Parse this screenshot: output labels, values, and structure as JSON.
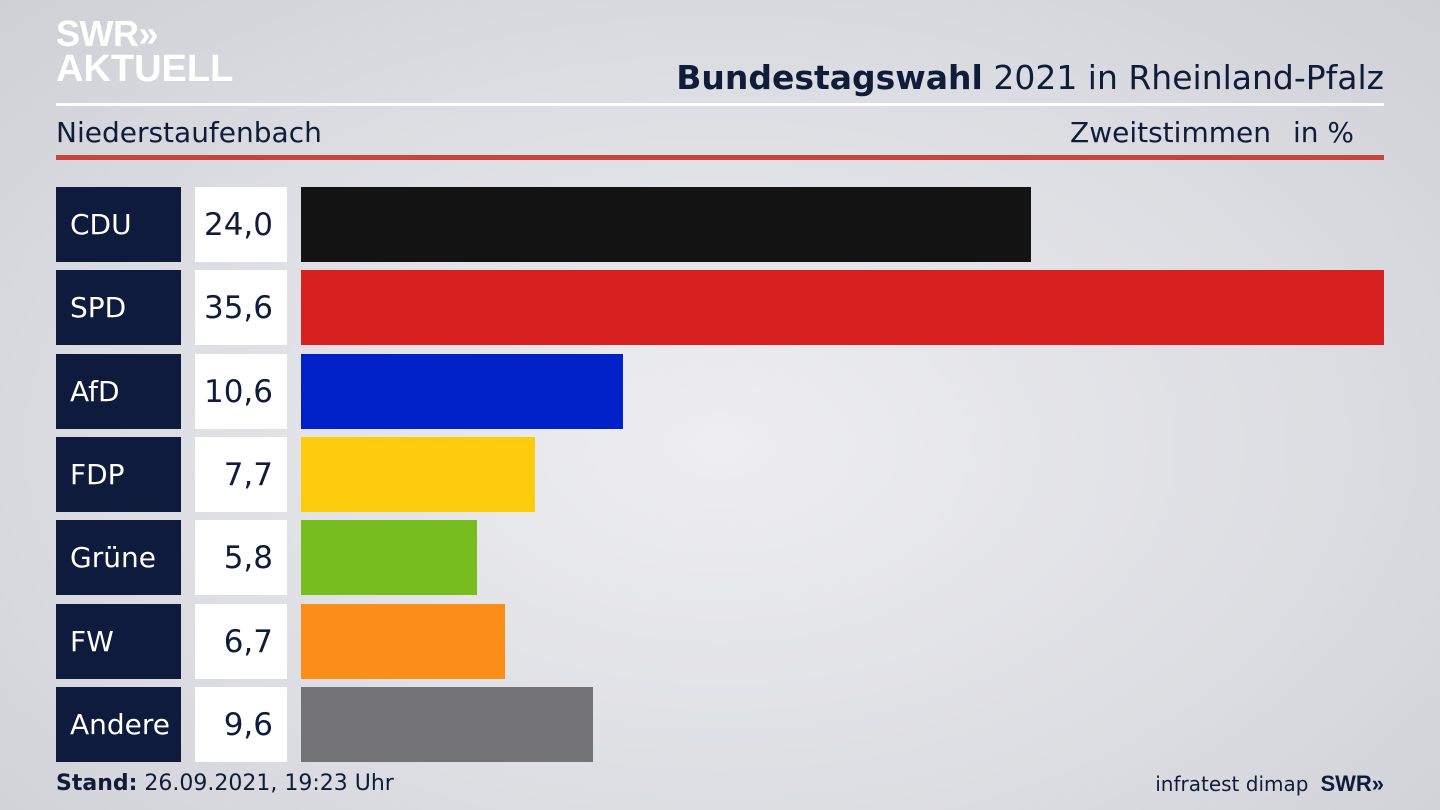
{
  "brand": {
    "line1": "SWR»",
    "line2": "AKTUELL"
  },
  "header": {
    "title_bold": "Bundestagswahl",
    "title_rest": " 2021 in Rheinland-Pfalz"
  },
  "region": "Niederstaufenbach",
  "measure": {
    "label": "Zweitstimmen",
    "unit": "in %"
  },
  "footer": {
    "stand_label": "Stand:",
    "stand_value": " 26.09.2021, 19:23 Uhr",
    "source": "infratest dimap",
    "logo": "SWR»"
  },
  "chart_data": {
    "type": "bar",
    "orientation": "horizontal",
    "title": "Bundestagswahl 2021 in Rheinland-Pfalz",
    "subtitle": "Niederstaufenbach",
    "categories": [
      "CDU",
      "SPD",
      "AfD",
      "FDP",
      "Grüne",
      "FW",
      "Andere"
    ],
    "values": [
      24.0,
      35.6,
      10.6,
      7.7,
      5.8,
      6.7,
      9.6
    ],
    "value_labels": [
      "24,0",
      "35,6",
      "10,6",
      "7,7",
      "5,8",
      "6,7",
      "9,6"
    ],
    "colors": [
      "#131313",
      "#d72020",
      "#0021c8",
      "#fdcc0c",
      "#78bd1e",
      "#fb8d19",
      "#737375"
    ],
    "xlim": [
      0,
      35.6
    ],
    "grid": false,
    "legend": "none"
  }
}
